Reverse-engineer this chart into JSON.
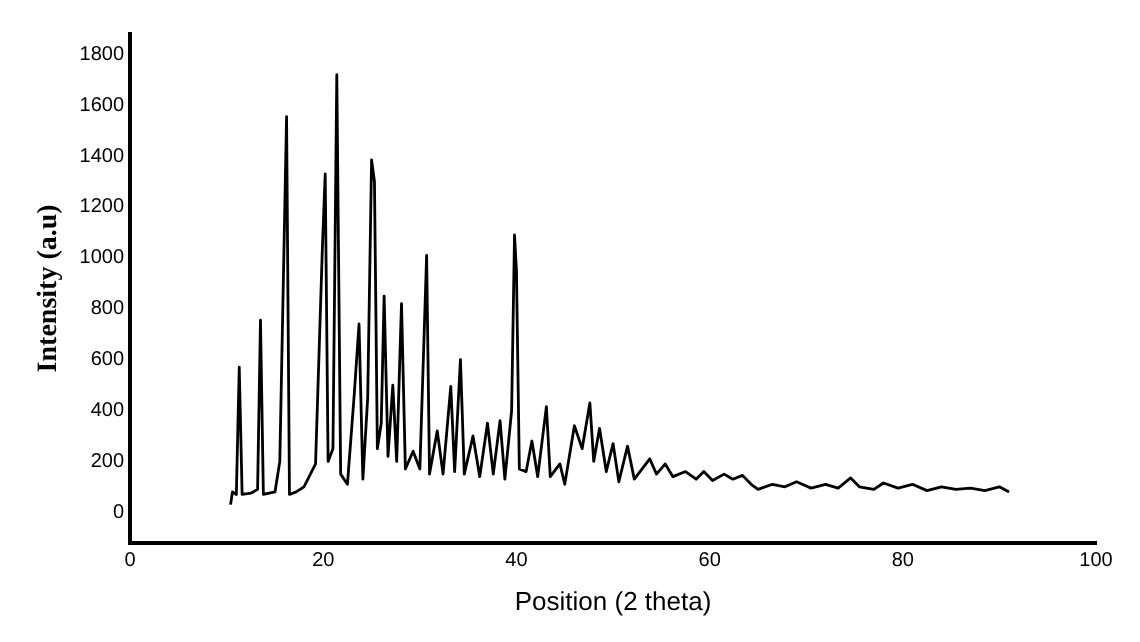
{
  "chart_data": {
    "type": "line",
    "xlabel": "Position (2 theta)",
    "ylabel": "Intensity (a.u)",
    "x": [
      10.4,
      10.6,
      11.0,
      11.3,
      11.6,
      12.5,
      13.2,
      13.5,
      13.8,
      15.0,
      15.5,
      16.2,
      16.5,
      17.2,
      18.0,
      19.2,
      19.9,
      20.2,
      20.5,
      21.0,
      21.4,
      21.8,
      22.5,
      23.2,
      23.7,
      24.1,
      24.6,
      25.0,
      25.3,
      25.6,
      26.0,
      26.3,
      26.7,
      27.2,
      27.6,
      28.1,
      28.5,
      29.3,
      30.0,
      30.7,
      31.0,
      31.8,
      32.4,
      33.2,
      33.6,
      34.2,
      34.6,
      35.5,
      36.2,
      37.0,
      37.6,
      38.3,
      38.8,
      39.5,
      39.8,
      40.0,
      40.3,
      41.0,
      41.6,
      42.2,
      43.1,
      43.5,
      44.5,
      45.0,
      46.0,
      46.8,
      47.6,
      48.0,
      48.6,
      49.3,
      50.0,
      50.6,
      51.5,
      52.2,
      53.8,
      54.5,
      55.4,
      56.2,
      57.5,
      58.6,
      59.4,
      60.3,
      61.5,
      62.4,
      63.4,
      64.3,
      65.0,
      66.5,
      67.8,
      69.0,
      70.5,
      72.0,
      73.3,
      74.6,
      75.5,
      77.0,
      78.0,
      79.5,
      81.0,
      82.5,
      84.0,
      85.5,
      87.0,
      88.5,
      90.0,
      91.0
    ],
    "series": [
      {
        "color": "#000000",
        "values": [
          30,
          80,
          70,
          570,
          70,
          75,
          90,
          755,
          70,
          80,
          200,
          1555,
          70,
          80,
          100,
          190,
          1030,
          1330,
          200,
          250,
          1720,
          150,
          110,
          460,
          740,
          130,
          450,
          1385,
          1300,
          250,
          350,
          850,
          220,
          500,
          200,
          820,
          170,
          240,
          170,
          1010,
          150,
          320,
          150,
          495,
          160,
          600,
          150,
          300,
          140,
          350,
          150,
          360,
          130,
          400,
          1090,
          950,
          170,
          160,
          280,
          140,
          415,
          140,
          190,
          110,
          340,
          250,
          430,
          200,
          330,
          160,
          270,
          120,
          260,
          130,
          210,
          150,
          190,
          140,
          160,
          130,
          160,
          125,
          150,
          130,
          145,
          110,
          90,
          110,
          100,
          120,
          95,
          110,
          95,
          135,
          100,
          90,
          115,
          95,
          110,
          85,
          100,
          90,
          95,
          85,
          100,
          80
        ]
      }
    ],
    "xlim": [
      0,
      100
    ],
    "xticks": [
      0,
      20,
      40,
      60,
      80,
      100
    ],
    "ylim": [
      -120,
      1880
    ],
    "yticks": [
      0,
      200,
      400,
      600,
      800,
      1000,
      1200,
      1400,
      1600,
      1800
    ],
    "grid": false,
    "legend": false,
    "marker": "none",
    "line_style": "solid"
  }
}
